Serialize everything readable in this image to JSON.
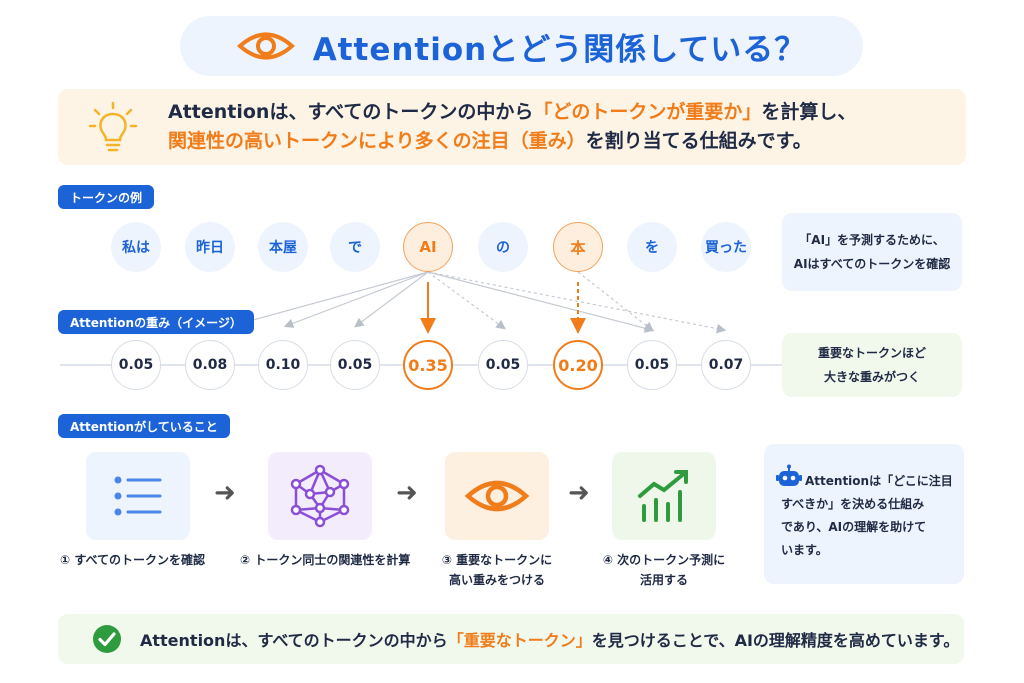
{
  "title": {
    "main": "Attentionとどう関係している？"
  },
  "intro": {
    "line1_pre": "Attentionは、すべてのトークンの中から",
    "line1_highlight": "「どのトークンが重要か」",
    "line1_post": "を計算し、",
    "line2_highlight": "関連性の高いトークンにより多くの注目（重み）",
    "line2_post": "を割り当てる仕組みです。"
  },
  "tokens_section": {
    "tag": "トークンの例",
    "tokens": [
      "私は",
      "昨日",
      "本屋",
      "で",
      "AI",
      "の",
      "本",
      "を",
      "買った"
    ],
    "note_line1": "「AI」を予測するために、",
    "note_line2": "AIはすべてのトークンを確認"
  },
  "weights_section": {
    "tag": "Attentionの重み（イメージ）",
    "weights": [
      "0.05",
      "0.08",
      "0.10",
      "0.05",
      "0.35",
      "0.05",
      "0.20",
      "0.05",
      "0.07"
    ],
    "note_line1": "重要なトークンほど",
    "note_line2": "大きな重みがつく"
  },
  "process_section": {
    "tag": "Attentionがしていること",
    "steps": [
      {
        "line1": "① すべてのトークンを確認",
        "line2": ""
      },
      {
        "line1": "② トークン同士の関連性を計算",
        "line2": ""
      },
      {
        "line1": "③ 重要なトークンに",
        "line2": "高い重みをつける"
      },
      {
        "line1": "④ 次のトークン予測に",
        "line2": "活用する"
      }
    ],
    "side_line1": "Attentionは「どこに注目",
    "side_line2": "すべきか」を決める仕組み",
    "side_line3": "であり、AIの理解を助けて",
    "side_line4": "います。"
  },
  "bottom": {
    "pre": "Attentionは、すべてのトークンの中から",
    "highlight": "「重要なトークン」",
    "post": "を見つけることで、AIの理解精度を高めています。"
  },
  "colors": {
    "blue": "#1d63d8",
    "orange": "#f07c1a",
    "green": "#2e9b3e",
    "purple": "#8a4fd6"
  },
  "icons": [
    "eye-icon",
    "lightbulb-icon",
    "list-icon",
    "neural-network-icon",
    "growth-chart-icon",
    "robot-icon",
    "check-circle-icon"
  ]
}
